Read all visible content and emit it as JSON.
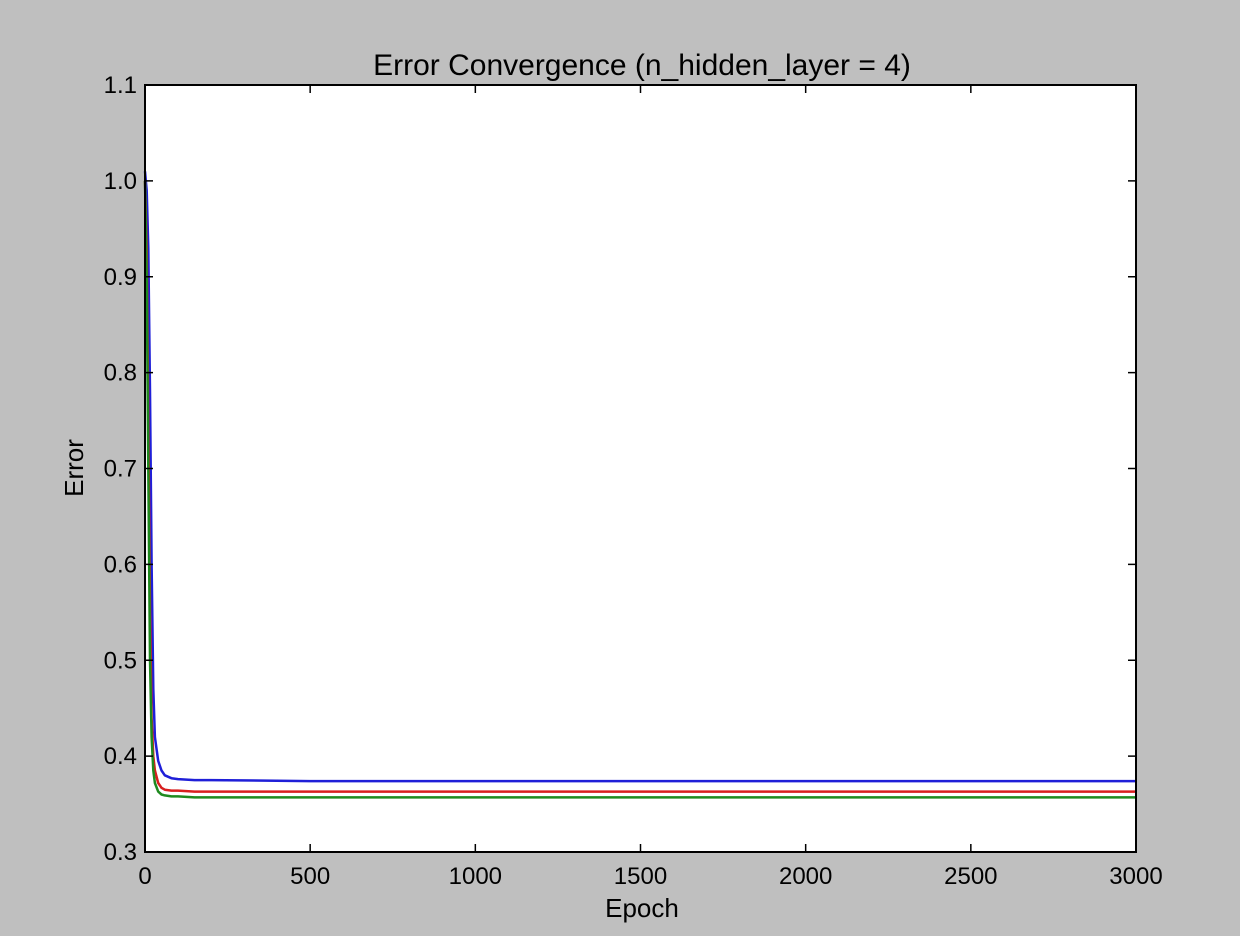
{
  "chart_data": {
    "type": "line",
    "title": "Error Convergence (n_hidden_layer = 4)",
    "xlabel": "Epoch",
    "ylabel": "Error",
    "xlim": [
      0,
      3000
    ],
    "ylim": [
      0.3,
      1.1
    ],
    "xticks": [
      0,
      500,
      1000,
      1500,
      2000,
      2500,
      3000
    ],
    "xtick_labels": [
      "0",
      "500",
      "1000",
      "1500",
      "2000",
      "2500",
      "3000"
    ],
    "yticks": [
      0.3,
      0.4,
      0.5,
      0.6,
      0.7,
      0.8,
      0.9,
      1.0,
      1.1
    ],
    "ytick_labels": [
      "0.3",
      "0.4",
      "0.5",
      "0.6",
      "0.7",
      "0.8",
      "0.9",
      "1.0",
      "1.1"
    ],
    "grid": false,
    "series": [
      {
        "color": "#1f1fd8",
        "x": [
          0,
          5,
          10,
          15,
          20,
          25,
          30,
          40,
          50,
          60,
          80,
          100,
          150,
          200,
          500,
          1000,
          1500,
          2000,
          2500,
          3000
        ],
        "y": [
          1.01,
          0.99,
          0.93,
          0.78,
          0.6,
          0.47,
          0.42,
          0.395,
          0.385,
          0.38,
          0.377,
          0.376,
          0.375,
          0.375,
          0.374,
          0.374,
          0.374,
          0.374,
          0.374,
          0.374
        ]
      },
      {
        "color": "#d81f1f",
        "x": [
          0,
          5,
          10,
          15,
          20,
          25,
          30,
          40,
          50,
          60,
          80,
          100,
          150,
          200,
          500,
          1000,
          1500,
          2000,
          2500,
          3000
        ],
        "y": [
          1.0,
          0.93,
          0.75,
          0.55,
          0.44,
          0.4,
          0.385,
          0.372,
          0.367,
          0.365,
          0.364,
          0.364,
          0.363,
          0.363,
          0.363,
          0.363,
          0.363,
          0.363,
          0.363,
          0.363
        ]
      },
      {
        "color": "#1f8a1f",
        "x": [
          0,
          5,
          10,
          15,
          20,
          25,
          30,
          40,
          50,
          60,
          80,
          100,
          150,
          200,
          500,
          1000,
          1500,
          2000,
          2500,
          3000
        ],
        "y": [
          1.0,
          0.9,
          0.7,
          0.5,
          0.42,
          0.385,
          0.372,
          0.363,
          0.36,
          0.359,
          0.358,
          0.358,
          0.357,
          0.357,
          0.357,
          0.357,
          0.357,
          0.357,
          0.357,
          0.357
        ]
      }
    ]
  }
}
